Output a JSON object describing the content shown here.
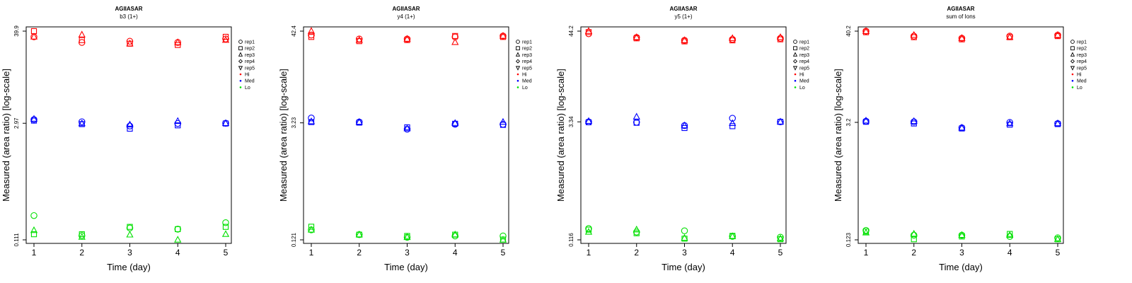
{
  "chart_data": [
    {
      "type": "scatter",
      "title": "AGIIASAR",
      "subtitle": "b3 (1+)",
      "xlabel": "Time (day)",
      "ylabel": "Measured (area ratio) [log-scale]",
      "log_y": true,
      "x_ticks": [
        "1",
        "2",
        "3",
        "4",
        "5"
      ],
      "y_ticks": [
        "0.111",
        "2.97",
        "39.9"
      ],
      "y_tick_values": [
        0.111,
        2.97,
        39.9
      ],
      "legend": {
        "placement": "right",
        "replicates": [
          {
            "label": "rep1",
            "marker": "circle"
          },
          {
            "label": "rep2",
            "marker": "square"
          },
          {
            "label": "rep3",
            "marker": "triangle-up"
          },
          {
            "label": "rep4",
            "marker": "diamond"
          },
          {
            "label": "rep5",
            "marker": "triangle-down"
          }
        ],
        "levels": [
          {
            "label": "Hi",
            "color": "#ff0000"
          },
          {
            "label": "Med",
            "color": "#0000ff"
          },
          {
            "label": "Lo",
            "color": "#00e000"
          }
        ]
      },
      "series": [
        {
          "level": "Hi",
          "rep": "rep1",
          "x": [
            1,
            2,
            3,
            4,
            5
          ],
          "y": [
            34,
            29,
            30,
            29,
            32
          ]
        },
        {
          "level": "Hi",
          "rep": "rep2",
          "x": [
            1,
            2,
            3,
            4,
            5
          ],
          "y": [
            39.9,
            31,
            28,
            27,
            34
          ]
        },
        {
          "level": "Hi",
          "rep": "rep3",
          "x": [
            1,
            2,
            3,
            4,
            5
          ],
          "y": [
            34,
            36,
            28,
            29,
            31
          ]
        },
        {
          "level": "Med",
          "rep": "rep1",
          "x": [
            1,
            2,
            3,
            4,
            5
          ],
          "y": [
            3.3,
            3.1,
            2.75,
            2.95,
            2.97
          ]
        },
        {
          "level": "Med",
          "rep": "rep2",
          "x": [
            1,
            2,
            3,
            4,
            5
          ],
          "y": [
            3.2,
            2.9,
            2.55,
            2.8,
            2.95
          ]
        },
        {
          "level": "Med",
          "rep": "rep3",
          "x": [
            1,
            2,
            3,
            4,
            5
          ],
          "y": [
            3.35,
            2.95,
            2.85,
            3.15,
            2.97
          ]
        },
        {
          "level": "Lo",
          "rep": "rep1",
          "x": [
            1,
            2,
            3,
            4,
            5
          ],
          "y": [
            0.22,
            0.125,
            0.155,
            0.15,
            0.18
          ]
        },
        {
          "level": "Lo",
          "rep": "rep2",
          "x": [
            1,
            2,
            3,
            4,
            5
          ],
          "y": [
            0.13,
            0.13,
            0.16,
            0.15,
            0.16
          ]
        },
        {
          "level": "Lo",
          "rep": "rep3",
          "x": [
            1,
            2,
            3,
            4,
            5
          ],
          "y": [
            0.145,
            0.12,
            0.128,
            0.111,
            0.13
          ]
        }
      ]
    },
    {
      "type": "scatter",
      "title": "AGIIASAR",
      "subtitle": "y4 (1+)",
      "xlabel": "Time (day)",
      "ylabel": "Measured (area ratio) [log-scale]",
      "log_y": true,
      "x_ticks": [
        "1",
        "2",
        "3",
        "4",
        "5"
      ],
      "y_ticks": [
        "0.121",
        "3.23",
        "42.4"
      ],
      "y_tick_values": [
        0.121,
        3.23,
        42.4
      ],
      "legend": {
        "placement": "right",
        "replicates": [
          {
            "label": "rep1",
            "marker": "circle"
          },
          {
            "label": "rep2",
            "marker": "square"
          },
          {
            "label": "rep3",
            "marker": "triangle-up"
          },
          {
            "label": "rep4",
            "marker": "diamond"
          },
          {
            "label": "rep5",
            "marker": "triangle-down"
          }
        ],
        "levels": [
          {
            "label": "Hi",
            "color": "#ff0000"
          },
          {
            "label": "Med",
            "color": "#0000ff"
          },
          {
            "label": "Lo",
            "color": "#00e000"
          }
        ]
      },
      "series": [
        {
          "level": "Hi",
          "rep": "rep1",
          "x": [
            1,
            2,
            3,
            4,
            5
          ],
          "y": [
            38,
            34,
            34,
            36,
            37
          ]
        },
        {
          "level": "Hi",
          "rep": "rep2",
          "x": [
            1,
            2,
            3,
            4,
            5
          ],
          "y": [
            36,
            32,
            33,
            37,
            36
          ]
        },
        {
          "level": "Hi",
          "rep": "rep3",
          "x": [
            1,
            2,
            3,
            4,
            5
          ],
          "y": [
            42.4,
            33,
            34,
            31,
            37
          ]
        },
        {
          "level": "Med",
          "rep": "rep1",
          "x": [
            1,
            2,
            3,
            4,
            5
          ],
          "y": [
            3.7,
            3.3,
            2.7,
            3.1,
            3.1
          ]
        },
        {
          "level": "Med",
          "rep": "rep2",
          "x": [
            1,
            2,
            3,
            4,
            5
          ],
          "y": [
            3.3,
            3.25,
            2.85,
            3.15,
            3.05
          ]
        },
        {
          "level": "Med",
          "rep": "rep3",
          "x": [
            1,
            2,
            3,
            4,
            5
          ],
          "y": [
            3.35,
            3.3,
            2.75,
            3.2,
            3.3
          ]
        },
        {
          "level": "Lo",
          "rep": "rep1",
          "x": [
            1,
            2,
            3,
            4,
            5
          ],
          "y": [
            0.16,
            0.14,
            0.13,
            0.135,
            0.135
          ]
        },
        {
          "level": "Lo",
          "rep": "rep2",
          "x": [
            1,
            2,
            3,
            4,
            5
          ],
          "y": [
            0.175,
            0.14,
            0.135,
            0.14,
            0.122
          ]
        },
        {
          "level": "Lo",
          "rep": "rep3",
          "x": [
            1,
            2,
            3,
            4,
            5
          ],
          "y": [
            0.16,
            0.14,
            0.13,
            0.14,
            0.121
          ]
        }
      ]
    },
    {
      "type": "scatter",
      "title": "AGIIASAR",
      "subtitle": "y5 (1+)",
      "xlabel": "Time (day)",
      "ylabel": "Measured (area ratio) [log-scale]",
      "log_y": true,
      "x_ticks": [
        "1",
        "2",
        "3",
        "4",
        "5"
      ],
      "y_ticks": [
        "0.116",
        "3.34",
        "44.2"
      ],
      "y_tick_values": [
        0.116,
        3.34,
        44.2
      ],
      "legend": {
        "placement": "right",
        "replicates": [
          {
            "label": "rep1",
            "marker": "circle"
          },
          {
            "label": "rep2",
            "marker": "square"
          },
          {
            "label": "rep3",
            "marker": "triangle-up"
          },
          {
            "label": "rep4",
            "marker": "diamond"
          },
          {
            "label": "rep5",
            "marker": "triangle-down"
          }
        ],
        "levels": [
          {
            "label": "Hi",
            "color": "#ff0000"
          },
          {
            "label": "Med",
            "color": "#0000ff"
          },
          {
            "label": "Lo",
            "color": "#00e000"
          }
        ]
      },
      "series": [
        {
          "level": "Hi",
          "rep": "rep1",
          "x": [
            1,
            2,
            3,
            4,
            5
          ],
          "y": [
            41,
            37,
            34,
            35,
            36
          ]
        },
        {
          "level": "Hi",
          "rep": "rep2",
          "x": [
            1,
            2,
            3,
            4,
            5
          ],
          "y": [
            43,
            36,
            33,
            34,
            35
          ]
        },
        {
          "level": "Hi",
          "rep": "rep3",
          "x": [
            1,
            2,
            3,
            4,
            5
          ],
          "y": [
            44.2,
            37,
            34,
            36,
            37
          ]
        },
        {
          "level": "Med",
          "rep": "rep1",
          "x": [
            1,
            2,
            3,
            4,
            5
          ],
          "y": [
            3.34,
            3.3,
            3.0,
            3.7,
            3.34
          ]
        },
        {
          "level": "Med",
          "rep": "rep2",
          "x": [
            1,
            2,
            3,
            4,
            5
          ],
          "y": [
            3.3,
            3.25,
            2.8,
            2.95,
            3.34
          ]
        },
        {
          "level": "Med",
          "rep": "rep3",
          "x": [
            1,
            2,
            3,
            4,
            5
          ],
          "y": [
            3.4,
            3.85,
            3.0,
            3.2,
            3.34
          ]
        },
        {
          "level": "Lo",
          "rep": "rep1",
          "x": [
            1,
            2,
            3,
            4,
            5
          ],
          "y": [
            0.16,
            0.145,
            0.15,
            0.128,
            0.125
          ]
        },
        {
          "level": "Lo",
          "rep": "rep2",
          "x": [
            1,
            2,
            3,
            4,
            5
          ],
          "y": [
            0.155,
            0.14,
            0.12,
            0.13,
            0.118
          ]
        },
        {
          "level": "Lo",
          "rep": "rep3",
          "x": [
            1,
            2,
            3,
            4,
            5
          ],
          "y": [
            0.145,
            0.155,
            0.122,
            0.128,
            0.12
          ]
        }
      ]
    },
    {
      "type": "scatter",
      "title": "AGIIASAR",
      "subtitle": "sum of Ions",
      "xlabel": "Time (day)",
      "ylabel": "Measured (area ratio) [log-scale]",
      "log_y": true,
      "x_ticks": [
        "1",
        "2",
        "3",
        "4",
        "5"
      ],
      "y_ticks": [
        "0.123",
        "3.2",
        "40.2"
      ],
      "y_tick_values": [
        0.123,
        3.2,
        40.2
      ],
      "legend": {
        "placement": "right",
        "replicates": [
          {
            "label": "rep1",
            "marker": "circle"
          },
          {
            "label": "rep2",
            "marker": "square"
          },
          {
            "label": "rep3",
            "marker": "triangle-up"
          },
          {
            "label": "rep4",
            "marker": "diamond"
          },
          {
            "label": "rep5",
            "marker": "triangle-down"
          }
        ],
        "levels": [
          {
            "label": "Hi",
            "color": "#ff0000"
          },
          {
            "label": "Med",
            "color": "#0000ff"
          },
          {
            "label": "Lo",
            "color": "#00e000"
          }
        ]
      },
      "series": [
        {
          "level": "Hi",
          "rep": "rep1",
          "x": [
            1,
            2,
            3,
            4,
            5
          ],
          "y": [
            40.2,
            35,
            33,
            35,
            36
          ]
        },
        {
          "level": "Hi",
          "rep": "rep2",
          "x": [
            1,
            2,
            3,
            4,
            5
          ],
          "y": [
            39,
            34,
            32,
            34,
            35
          ]
        },
        {
          "level": "Hi",
          "rep": "rep3",
          "x": [
            1,
            2,
            3,
            4,
            5
          ],
          "y": [
            40,
            36,
            33,
            34,
            36
          ]
        },
        {
          "level": "Med",
          "rep": "rep1",
          "x": [
            1,
            2,
            3,
            4,
            5
          ],
          "y": [
            3.3,
            3.25,
            2.75,
            3.2,
            3.1
          ]
        },
        {
          "level": "Med",
          "rep": "rep2",
          "x": [
            1,
            2,
            3,
            4,
            5
          ],
          "y": [
            3.25,
            3.1,
            2.7,
            3.0,
            3.05
          ]
        },
        {
          "level": "Med",
          "rep": "rep3",
          "x": [
            1,
            2,
            3,
            4,
            5
          ],
          "y": [
            3.35,
            3.3,
            2.75,
            3.1,
            3.1
          ]
        },
        {
          "level": "Lo",
          "rep": "rep1",
          "x": [
            1,
            2,
            3,
            4,
            5
          ],
          "y": [
            0.16,
            0.14,
            0.14,
            0.135,
            0.13
          ]
        },
        {
          "level": "Lo",
          "rep": "rep2",
          "x": [
            1,
            2,
            3,
            4,
            5
          ],
          "y": [
            0.155,
            0.125,
            0.135,
            0.145,
            0.125
          ]
        },
        {
          "level": "Lo",
          "rep": "rep3",
          "x": [
            1,
            2,
            3,
            4,
            5
          ],
          "y": [
            0.15,
            0.145,
            0.14,
            0.14,
            0.125
          ]
        }
      ]
    }
  ]
}
